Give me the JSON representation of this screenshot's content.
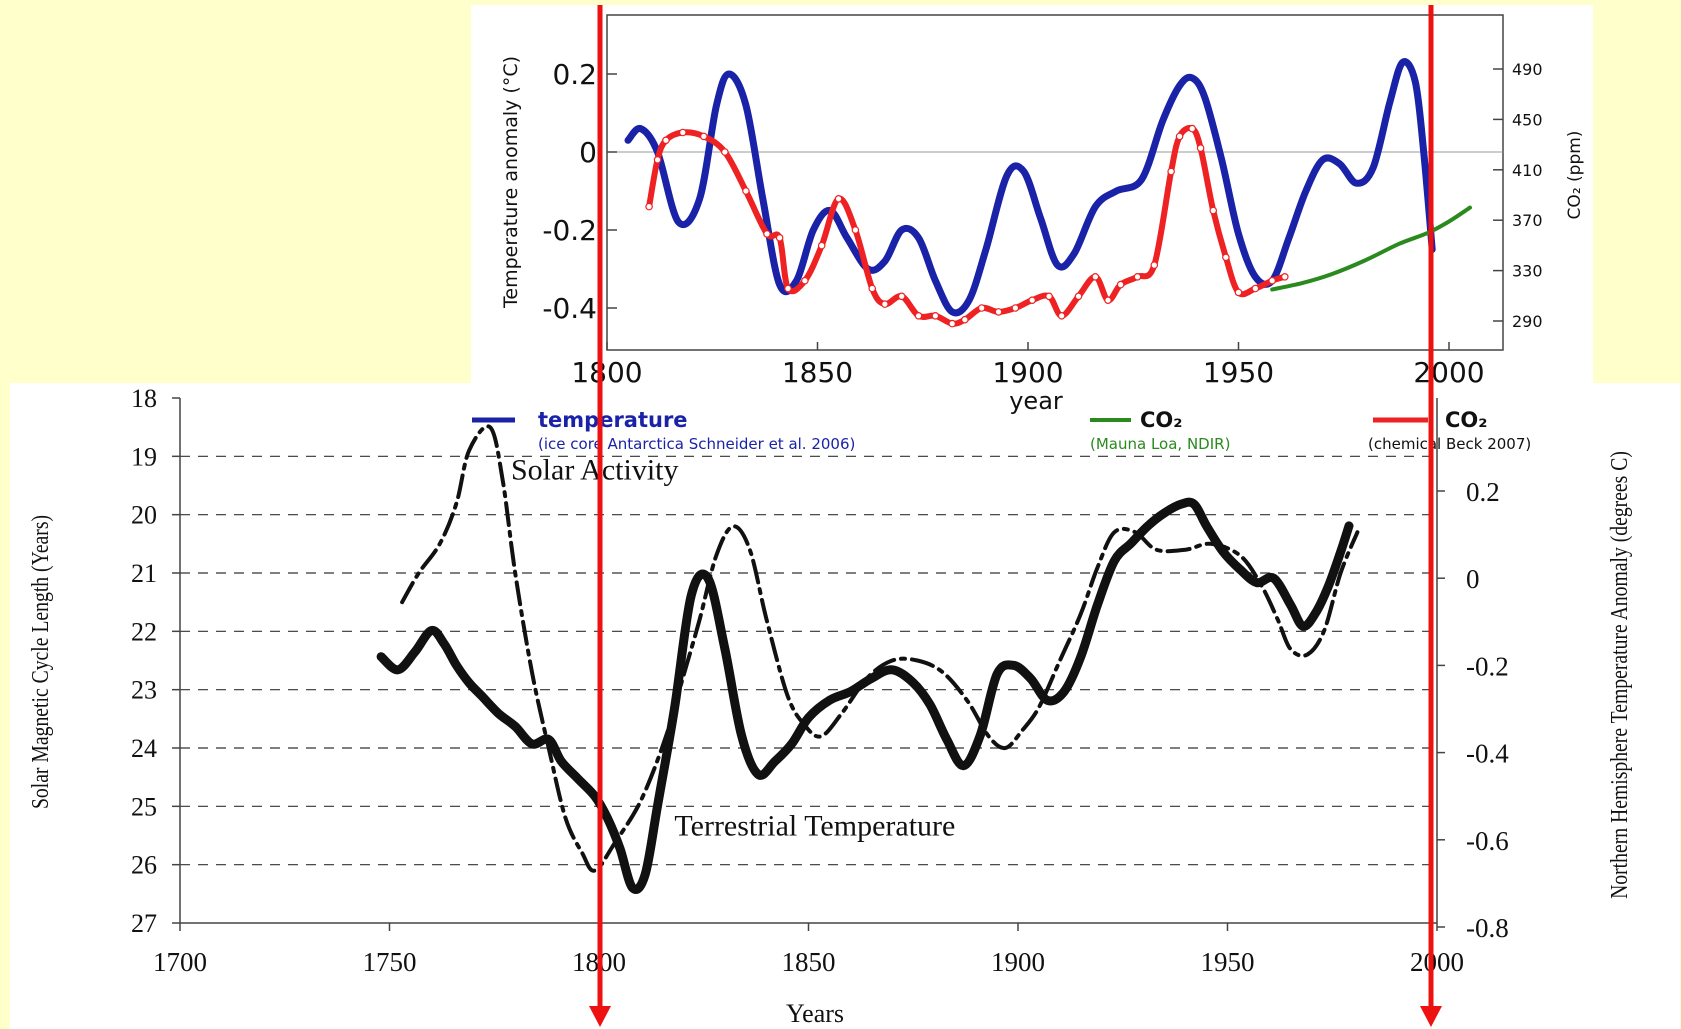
{
  "colors": {
    "background": "#ffffcc",
    "temperature_blue": "#1a23a8",
    "co2_green": "#2a8a1e",
    "co2_red": "#ee2222",
    "marker_red": "#ee1111",
    "solar_black": "#111111"
  },
  "chart_data": [
    {
      "type": "line",
      "title": "",
      "xlabel": "year",
      "ylabel": "Temperature anomaly (°C)",
      "y2label": "CO₂ (ppm)",
      "xlim": [
        1800,
        2005
      ],
      "ylim": [
        -0.5,
        0.35
      ],
      "y2lim": [
        270,
        530
      ],
      "x_ticks": [
        {
          "v": 1800,
          "label": "1800"
        },
        {
          "v": 1850,
          "label": "1850"
        },
        {
          "v": 1900,
          "label": "1900"
        },
        {
          "v": 1950,
          "label": "1950"
        },
        {
          "v": 2000,
          "label": "2000"
        }
      ],
      "y_ticks": [
        {
          "v": 0.2,
          "label": "0.2"
        },
        {
          "v": 0,
          "label": "0"
        },
        {
          "v": -0.2,
          "label": "-0.2"
        },
        {
          "v": -0.4,
          "label": "-0.4"
        }
      ],
      "y2_ticks": [
        {
          "v": 490,
          "label": "490"
        },
        {
          "v": 450,
          "label": "450"
        },
        {
          "v": 410,
          "label": "410"
        },
        {
          "v": 370,
          "label": "370"
        },
        {
          "v": 330,
          "label": "330"
        },
        {
          "v": 290,
          "label": "290"
        }
      ],
      "legend": [
        {
          "label": "temperature",
          "sub": "(ice core Antarctica Schneider et al. 2006)",
          "color": "#1a23a8"
        },
        {
          "label": "CO₂",
          "sub": "(Mauna Loa, NDIR)",
          "color": "#2a8a1e"
        },
        {
          "label": "CO₂",
          "sub": "(chemical Beck 2007)",
          "color": "#ee2222"
        }
      ],
      "series": [
        {
          "name": "temperature",
          "axis": "left",
          "color": "#1a23a8",
          "points": [
            [
              1805,
              0.03
            ],
            [
              1808,
              0.06
            ],
            [
              1812,
              0.0
            ],
            [
              1817,
              -0.18
            ],
            [
              1822,
              -0.12
            ],
            [
              1826,
              0.12
            ],
            [
              1829,
              0.2
            ],
            [
              1833,
              0.12
            ],
            [
              1837,
              -0.12
            ],
            [
              1841,
              -0.34
            ],
            [
              1845,
              -0.33
            ],
            [
              1849,
              -0.2
            ],
            [
              1853,
              -0.15
            ],
            [
              1857,
              -0.22
            ],
            [
              1862,
              -0.3
            ],
            [
              1866,
              -0.28
            ],
            [
              1870,
              -0.2
            ],
            [
              1874,
              -0.22
            ],
            [
              1878,
              -0.33
            ],
            [
              1882,
              -0.41
            ],
            [
              1886,
              -0.38
            ],
            [
              1890,
              -0.25
            ],
            [
              1895,
              -0.06
            ],
            [
              1899,
              -0.05
            ],
            [
              1903,
              -0.17
            ],
            [
              1907,
              -0.29
            ],
            [
              1911,
              -0.26
            ],
            [
              1916,
              -0.14
            ],
            [
              1921,
              -0.1
            ],
            [
              1927,
              -0.07
            ],
            [
              1932,
              0.08
            ],
            [
              1936,
              0.17
            ],
            [
              1939,
              0.19
            ],
            [
              1942,
              0.14
            ],
            [
              1946,
              -0.02
            ],
            [
              1950,
              -0.21
            ],
            [
              1954,
              -0.32
            ],
            [
              1958,
              -0.33
            ],
            [
              1962,
              -0.22
            ],
            [
              1966,
              -0.1
            ],
            [
              1970,
              -0.02
            ],
            [
              1974,
              -0.03
            ],
            [
              1978,
              -0.08
            ],
            [
              1982,
              -0.04
            ],
            [
              1986,
              0.13
            ],
            [
              1989,
              0.23
            ],
            [
              1992,
              0.18
            ],
            [
              1994,
              0.0
            ],
            [
              1996,
              -0.25
            ]
          ]
        },
        {
          "name": "CO₂ (Mauna Loa, NDIR)",
          "axis": "right",
          "color": "#2a8a1e",
          "points": [
            [
              1958,
              315
            ],
            [
              1965,
              320
            ],
            [
              1972,
              327
            ],
            [
              1980,
              338
            ],
            [
              1988,
              351
            ],
            [
              1995,
              360
            ],
            [
              2000,
              369
            ],
            [
              2005,
              380
            ]
          ]
        },
        {
          "name": "CO₂ (chemical Beck 2007)",
          "axis": "left",
          "color": "#ee2222",
          "markers": true,
          "points": [
            [
              1810,
              -0.14
            ],
            [
              1812,
              -0.02
            ],
            [
              1814,
              0.03
            ],
            [
              1818,
              0.05
            ],
            [
              1823,
              0.04
            ],
            [
              1828,
              0.0
            ],
            [
              1833,
              -0.1
            ],
            [
              1838,
              -0.21
            ],
            [
              1841,
              -0.22
            ],
            [
              1843,
              -0.35
            ],
            [
              1847,
              -0.33
            ],
            [
              1851,
              -0.24
            ],
            [
              1855,
              -0.12
            ],
            [
              1859,
              -0.2
            ],
            [
              1863,
              -0.35
            ],
            [
              1866,
              -0.39
            ],
            [
              1870,
              -0.37
            ],
            [
              1874,
              -0.42
            ],
            [
              1878,
              -0.42
            ],
            [
              1882,
              -0.44
            ],
            [
              1885,
              -0.43
            ],
            [
              1889,
              -0.4
            ],
            [
              1893,
              -0.41
            ],
            [
              1897,
              -0.4
            ],
            [
              1901,
              -0.38
            ],
            [
              1905,
              -0.37
            ],
            [
              1908,
              -0.42
            ],
            [
              1912,
              -0.37
            ],
            [
              1916,
              -0.32
            ],
            [
              1919,
              -0.38
            ],
            [
              1922,
              -0.34
            ],
            [
              1926,
              -0.32
            ],
            [
              1930,
              -0.29
            ],
            [
              1934,
              -0.05
            ],
            [
              1936,
              0.04
            ],
            [
              1939,
              0.06
            ],
            [
              1941,
              0.01
            ],
            [
              1944,
              -0.15
            ],
            [
              1947,
              -0.27
            ],
            [
              1950,
              -0.36
            ],
            [
              1954,
              -0.35
            ],
            [
              1958,
              -0.33
            ],
            [
              1961,
              -0.32
            ]
          ]
        }
      ]
    },
    {
      "type": "line",
      "title": "",
      "xlabel": "Years",
      "ylabel": "Solar Magnetic Cycle Length (Years)",
      "y2label": "Northern Hemisphere Temperature Anomaly (degrees C)",
      "xlim": [
        1700,
        2000
      ],
      "ylim": [
        27,
        18
      ],
      "y2lim": [
        -0.8,
        0.4
      ],
      "grid": "dashed horizontal",
      "x_ticks": [
        {
          "v": 1700,
          "label": "1700"
        },
        {
          "v": 1750,
          "label": "1750"
        },
        {
          "v": 1800,
          "label": "1800"
        },
        {
          "v": 1850,
          "label": "1850"
        },
        {
          "v": 1900,
          "label": "1900"
        },
        {
          "v": 1950,
          "label": "1950"
        },
        {
          "v": 2000,
          "label": "2000"
        }
      ],
      "y_ticks": [
        {
          "v": 18,
          "label": "18"
        },
        {
          "v": 19,
          "label": "19"
        },
        {
          "v": 20,
          "label": "20"
        },
        {
          "v": 21,
          "label": "21"
        },
        {
          "v": 22,
          "label": "22"
        },
        {
          "v": 23,
          "label": "23"
        },
        {
          "v": 24,
          "label": "24"
        },
        {
          "v": 25,
          "label": "25"
        },
        {
          "v": 26,
          "label": "26"
        },
        {
          "v": 27,
          "label": "27"
        }
      ],
      "y2_ticks": [
        {
          "v": 0.2,
          "label": "0.2"
        },
        {
          "v": 0,
          "label": "0"
        },
        {
          "v": -0.2,
          "label": "-0.2"
        },
        {
          "v": -0.4,
          "label": "-0.4"
        },
        {
          "v": -0.6,
          "label": "-0.6"
        },
        {
          "v": -0.8,
          "label": "-0.8"
        }
      ],
      "annotations": [
        {
          "text": "Solar Activity",
          "x": 1779,
          "y": 19.4
        },
        {
          "text": "Terrestrial Temperature",
          "x": 1818,
          "y": 25.5
        }
      ],
      "series": [
        {
          "name": "Solar Activity",
          "axis": "left",
          "style": "dash-dot",
          "color": "#111111",
          "points": [
            [
              1753,
              21.5
            ],
            [
              1757,
              21.0
            ],
            [
              1762,
              20.5
            ],
            [
              1766,
              19.8
            ],
            [
              1769,
              18.9
            ],
            [
              1774,
              18.5
            ],
            [
              1777,
              19.4
            ],
            [
              1780,
              21.0
            ],
            [
              1784,
              22.7
            ],
            [
              1788,
              24.0
            ],
            [
              1792,
              25.2
            ],
            [
              1796,
              25.8
            ],
            [
              1799,
              26.1
            ],
            [
              1804,
              25.6
            ],
            [
              1810,
              24.9
            ],
            [
              1816,
              23.8
            ],
            [
              1820,
              22.8
            ],
            [
              1824,
              21.8
            ],
            [
              1828,
              20.7
            ],
            [
              1832,
              20.2
            ],
            [
              1836,
              20.6
            ],
            [
              1840,
              21.8
            ],
            [
              1845,
              23.1
            ],
            [
              1849,
              23.6
            ],
            [
              1853,
              23.8
            ],
            [
              1858,
              23.4
            ],
            [
              1864,
              22.8
            ],
            [
              1870,
              22.5
            ],
            [
              1876,
              22.5
            ],
            [
              1882,
              22.7
            ],
            [
              1888,
              23.2
            ],
            [
              1893,
              23.8
            ],
            [
              1897,
              24.0
            ],
            [
              1901,
              23.7
            ],
            [
              1905,
              23.3
            ],
            [
              1910,
              22.5
            ],
            [
              1915,
              21.7
            ],
            [
              1919,
              20.9
            ],
            [
              1923,
              20.3
            ],
            [
              1928,
              20.3
            ],
            [
              1933,
              20.6
            ],
            [
              1940,
              20.6
            ],
            [
              1946,
              20.5
            ],
            [
              1953,
              20.7
            ],
            [
              1958,
              21.2
            ],
            [
              1962,
              21.8
            ],
            [
              1965,
              22.3
            ],
            [
              1969,
              22.4
            ],
            [
              1973,
              22.0
            ],
            [
              1977,
              21.0
            ],
            [
              1981,
              20.3
            ]
          ]
        },
        {
          "name": "Terrestrial Temperature",
          "axis": "right",
          "style": "solid",
          "color": "#111111",
          "points": [
            [
              1748,
              -0.18
            ],
            [
              1752,
              -0.21
            ],
            [
              1756,
              -0.17
            ],
            [
              1760,
              -0.12
            ],
            [
              1763,
              -0.15
            ],
            [
              1766,
              -0.2
            ],
            [
              1769,
              -0.24
            ],
            [
              1772,
              -0.27
            ],
            [
              1776,
              -0.31
            ],
            [
              1780,
              -0.34
            ],
            [
              1784,
              -0.38
            ],
            [
              1788,
              -0.37
            ],
            [
              1791,
              -0.42
            ],
            [
              1795,
              -0.46
            ],
            [
              1799,
              -0.5
            ],
            [
              1802,
              -0.55
            ],
            [
              1805,
              -0.62
            ],
            [
              1808,
              -0.71
            ],
            [
              1811,
              -0.68
            ],
            [
              1814,
              -0.52
            ],
            [
              1818,
              -0.3
            ],
            [
              1822,
              -0.04
            ],
            [
              1826,
              0.0
            ],
            [
              1830,
              -0.16
            ],
            [
              1834,
              -0.36
            ],
            [
              1838,
              -0.45
            ],
            [
              1842,
              -0.42
            ],
            [
              1846,
              -0.38
            ],
            [
              1850,
              -0.32
            ],
            [
              1855,
              -0.28
            ],
            [
              1860,
              -0.26
            ],
            [
              1865,
              -0.23
            ],
            [
              1870,
              -0.21
            ],
            [
              1875,
              -0.24
            ],
            [
              1879,
              -0.29
            ],
            [
              1883,
              -0.37
            ],
            [
              1887,
              -0.43
            ],
            [
              1891,
              -0.36
            ],
            [
              1895,
              -0.22
            ],
            [
              1899,
              -0.2
            ],
            [
              1903,
              -0.23
            ],
            [
              1907,
              -0.28
            ],
            [
              1911,
              -0.26
            ],
            [
              1915,
              -0.18
            ],
            [
              1919,
              -0.06
            ],
            [
              1923,
              0.04
            ],
            [
              1927,
              0.08
            ],
            [
              1931,
              0.12
            ],
            [
              1935,
              0.15
            ],
            [
              1939,
              0.17
            ],
            [
              1942,
              0.17
            ],
            [
              1945,
              0.12
            ],
            [
              1949,
              0.06
            ],
            [
              1953,
              0.02
            ],
            [
              1957,
              -0.01
            ],
            [
              1961,
              0.0
            ],
            [
              1965,
              -0.06
            ],
            [
              1968,
              -0.11
            ],
            [
              1971,
              -0.08
            ],
            [
              1974,
              -0.02
            ],
            [
              1977,
              0.06
            ],
            [
              1979,
              0.12
            ]
          ]
        }
      ]
    }
  ],
  "markers": [
    {
      "name": "marker-1800",
      "year": 1800
    },
    {
      "name": "marker-2000",
      "year": 2000
    }
  ]
}
